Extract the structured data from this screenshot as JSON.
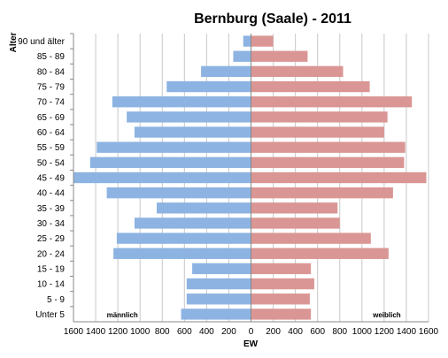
{
  "chart_data": {
    "type": "bar",
    "orientation": "horizontal",
    "subtype": "population-pyramid",
    "title": "Bernburg (Saale) - 2011",
    "xlabel": "EW",
    "ylabel": "Alter",
    "categories": [
      "90 und älter",
      "85 - 89",
      "80 - 84",
      "75 - 79",
      "70 - 74",
      "65 - 69",
      "60 - 64",
      "55 - 59",
      "50 - 54",
      "45 - 49",
      "40 - 44",
      "35 - 39",
      "30 - 34",
      "25 - 29",
      "20 - 24",
      "15 - 19",
      "10 - 14",
      "5 - 9",
      "Unter 5"
    ],
    "series": [
      {
        "name": "männlich",
        "side": "left",
        "color": "#8DB3E2",
        "values": [
          70,
          160,
          450,
          760,
          1250,
          1120,
          1050,
          1390,
          1450,
          1600,
          1300,
          850,
          1050,
          1210,
          1240,
          530,
          580,
          580,
          630
        ]
      },
      {
        "name": "weiblich",
        "side": "right",
        "color": "#DA9694",
        "values": [
          200,
          510,
          830,
          1070,
          1450,
          1230,
          1200,
          1390,
          1380,
          1580,
          1280,
          780,
          800,
          1080,
          1240,
          540,
          570,
          530,
          540
        ]
      }
    ],
    "xlim": [
      -1600,
      1600
    ],
    "xticks": [
      -1600,
      -1400,
      -1200,
      -1000,
      -800,
      -600,
      -400,
      -200,
      0,
      200,
      400,
      600,
      800,
      1000,
      1200,
      1400,
      1600
    ],
    "xtick_labels": [
      "1600",
      "1400",
      "1200",
      "1000",
      "800",
      "600",
      "400",
      "200",
      "0",
      "200",
      "400",
      "600",
      "800",
      "1000",
      "1200",
      "1400",
      "1600"
    ],
    "grid": true,
    "legend": "inline labels at bottom"
  }
}
